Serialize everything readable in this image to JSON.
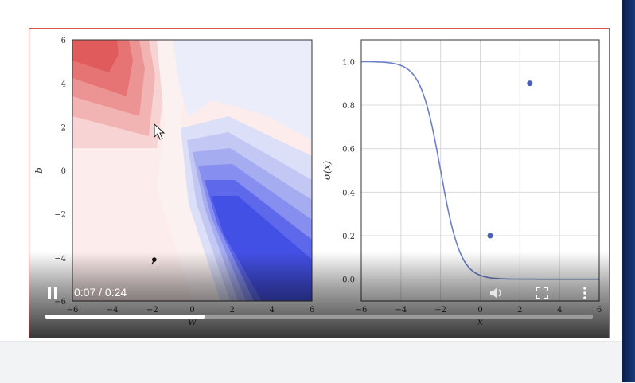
{
  "player": {
    "time_label": "0:07 / 0:24",
    "progress": 0.29
  },
  "icons": {
    "pause": "pause-icon",
    "volume": "volume-icon",
    "fullscreen": "fullscreen-icon",
    "more": "more-vert-icon",
    "cursor": "mouse-cursor-icon"
  },
  "colors": {
    "red_region": "#e74c4c",
    "blue_region": "#3b48e0",
    "sigmoid_line": "#6c7fc9",
    "points": "#4a5fb8",
    "player_border": "#d9534f"
  },
  "chart_data": [
    {
      "type": "heatmap",
      "xlabel": "w",
      "ylabel": "b",
      "xlim": [
        -6,
        6
      ],
      "ylim": [
        -6,
        6
      ],
      "xticks": [
        "−6",
        "−4",
        "−2",
        "0",
        "2",
        "4",
        "6"
      ],
      "yticks": [
        "6",
        "4",
        "2",
        "0",
        "−2",
        "−4",
        "−6"
      ],
      "marker": {
        "x": -1.9,
        "y": -4.1
      }
    },
    {
      "type": "line",
      "xlabel": "x",
      "ylabel": "σ(x)",
      "xlim": [
        -6,
        6
      ],
      "ylim": [
        -0.1,
        1.1
      ],
      "xticks": [
        "−6",
        "−4",
        "−2",
        "0",
        "2",
        "4",
        "6"
      ],
      "yticks": [
        "1.0",
        "0.8",
        "0.6",
        "0.4",
        "0.2",
        "0.0"
      ],
      "curve": {
        "w": -2.0,
        "b": -4.0
      },
      "points": [
        {
          "x": 0.5,
          "y": 0.2
        },
        {
          "x": 2.5,
          "y": 0.9
        }
      ],
      "grid": true
    }
  ]
}
